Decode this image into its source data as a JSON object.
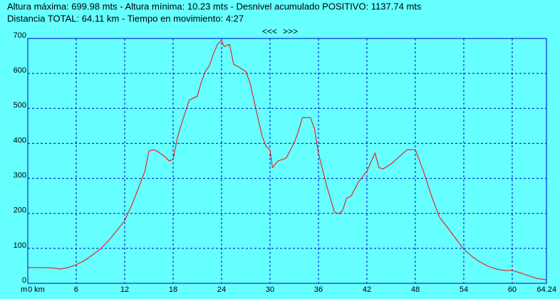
{
  "chart_data": {
    "type": "line",
    "title": "Altura máxima: 699.98 mts - Altura mínima: 10.23 mts - Desnivel acumulado POSITIVO: 1137.74 mts",
    "subtitle": "Distancia TOTAL: 64.11 km - Tiempo en movimiento: 4:27",
    "nav": {
      "prev": "<<<",
      "next": ">>>"
    },
    "y_label": "m",
    "xlim": [
      0,
      64.24
    ],
    "ylim": [
      0,
      700
    ],
    "xticks": [
      {
        "value": 0,
        "label": "0 km"
      },
      6,
      12,
      18,
      24,
      30,
      36,
      42,
      48,
      54,
      60,
      64.24
    ],
    "yticks": [
      0,
      100,
      200,
      300,
      400,
      500,
      600,
      700
    ],
    "grid": true,
    "background": "#66ffff",
    "grid_color": "#0000cc",
    "series": [
      {
        "color": "#ff0000",
        "x": [
          0,
          0.5,
          2,
          3,
          4,
          5,
          6,
          7,
          8,
          9,
          10,
          11,
          12,
          13,
          14,
          14.5,
          15,
          15.5,
          16,
          17,
          17.5,
          18,
          18.5,
          19,
          20,
          21,
          21.5,
          22,
          22.5,
          23,
          23.5,
          24,
          24.3,
          25,
          25.5,
          26,
          27,
          27.5,
          28,
          29,
          29.5,
          30,
          30.3,
          31,
          32,
          33,
          33.5,
          34,
          35,
          35.5,
          36,
          37,
          38,
          38.5,
          39,
          39.5,
          40,
          41,
          42,
          43,
          43.5,
          44,
          45,
          46,
          47,
          48,
          49,
          50,
          51,
          52,
          53,
          54,
          55,
          56,
          57,
          58,
          59,
          60,
          61,
          62,
          63,
          64.24
        ],
        "values": [
          45,
          45,
          45,
          44,
          41,
          45,
          53,
          65,
          81,
          98,
          122,
          150,
          179,
          230,
          290,
          320,
          378,
          382,
          378,
          362,
          350,
          354,
          413,
          453,
          524,
          535,
          575,
          606,
          622,
          657,
          683,
          695,
          677,
          683,
          626,
          620,
          606,
          575,
          524,
          423,
          392,
          382,
          331,
          350,
          358,
          402,
          433,
          474,
          474,
          443,
          372,
          280,
          203,
          199,
          209,
          244,
          248,
          291,
          321,
          372,
          331,
          327,
          341,
          362,
          382,
          382,
          321,
          250,
          189,
          159,
          128,
          98,
          77,
          61,
          49,
          41,
          37,
          37,
          30,
          22,
          14,
          10
        ]
      }
    ]
  }
}
